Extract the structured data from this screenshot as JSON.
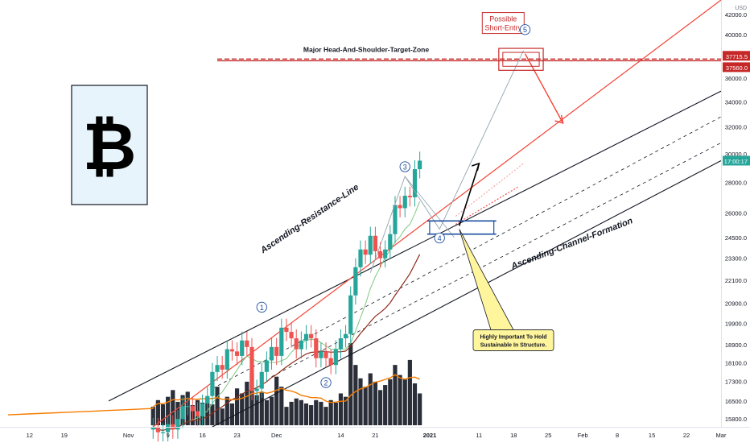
{
  "chart_data": {
    "type": "candlestick",
    "symbol": "BTCUSD",
    "title": "",
    "currency": "USD",
    "countdown": "17:00:17",
    "y_axis": {
      "scale": "log",
      "range": [
        15500,
        43500
      ],
      "ticks": [
        15800,
        16500,
        17300,
        18100,
        18900,
        19900,
        20900,
        22100,
        23300,
        24500,
        26000,
        28000,
        30000,
        32000,
        34000,
        36000,
        38000,
        40000,
        42000
      ]
    },
    "price_labels": {
      "upper": "37715.5",
      "lower": "37560.0"
    },
    "x_axis": {
      "range": [
        "2020-10-06",
        "2021-03-01"
      ],
      "ticks": [
        {
          "date": "2020-10-12",
          "label": "12"
        },
        {
          "date": "2020-10-19",
          "label": "19"
        },
        {
          "date": "2020-11-01",
          "label": "Nov"
        },
        {
          "date": "2020-11-09",
          "label": "9"
        },
        {
          "date": "2020-11-16",
          "label": "16"
        },
        {
          "date": "2020-11-23",
          "label": "23"
        },
        {
          "date": "2020-12-01",
          "label": "Dec"
        },
        {
          "date": "2020-12-14",
          "label": "14"
        },
        {
          "date": "2020-12-21",
          "label": "21"
        },
        {
          "date": "2021-01-01",
          "label": "2021"
        },
        {
          "date": "2021-01-11",
          "label": "11"
        },
        {
          "date": "2021-01-18",
          "label": "18"
        },
        {
          "date": "2021-01-25",
          "label": "25"
        },
        {
          "date": "2021-02-01",
          "label": "Feb"
        },
        {
          "date": "2021-02-08",
          "label": "8"
        },
        {
          "date": "2021-02-15",
          "label": "15"
        },
        {
          "date": "2021-02-22",
          "label": "22"
        },
        {
          "date": "2021-03-01",
          "label": "Mar"
        }
      ]
    },
    "candles": {
      "first_date": "2020-11-06",
      "close": [
        15500,
        15300,
        15300,
        15600,
        15400,
        15800,
        16300,
        16300,
        16100,
        15900,
        16400,
        16700,
        17700,
        18000,
        17800,
        18700,
        18600,
        18400,
        19100,
        18800,
        16900,
        17000,
        17700,
        18200,
        18800,
        18400,
        19700,
        19500,
        19200,
        18700,
        19100,
        19400,
        19200,
        18300,
        18600,
        18300,
        18000,
        18700,
        19200,
        19400,
        21300,
        22800,
        23800,
        23500,
        24600,
        23700,
        23300,
        23800,
        24700,
        26500,
        26300,
        27100,
        27000,
        28900,
        29500
      ]
    },
    "volume_bars_relative": [
      0.22,
      0.3,
      0.25,
      0.34,
      0.42,
      0.28,
      0.36,
      0.4,
      0.24,
      0.3,
      0.27,
      0.33,
      0.25,
      0.46,
      0.2,
      0.34,
      0.26,
      0.44,
      0.38,
      0.52,
      0.62,
      0.36,
      0.4,
      0.3,
      0.34,
      0.58,
      0.46,
      0.22,
      0.28,
      0.32,
      0.3,
      0.26,
      0.24,
      0.3,
      0.28,
      0.22,
      0.3,
      0.27,
      0.38,
      0.34,
      0.98,
      0.72,
      0.56,
      0.46,
      0.62,
      0.52,
      0.42,
      0.48,
      0.55,
      0.72,
      0.6,
      0.55,
      0.78,
      0.5,
      0.38
    ],
    "annotations": {
      "resistance_label": "Ascending-Resistance-Line",
      "channel_label": "Ascending-Channel-Formation",
      "hs_zone_label": "Major Head-And-Shoulder-Target-Zone",
      "short_entry_line1": "Possible",
      "short_entry_line2": "Short-Entry",
      "note_line1": "Highly Important To Hold",
      "note_line2": "Sustainable In Structure.",
      "waves": [
        "1",
        "2",
        "3",
        "4",
        "5"
      ]
    },
    "logo_symbol": "₿",
    "colors": {
      "up": "#26a69a",
      "down": "#ef5350",
      "volume": "#131722",
      "resistance": "#f44336",
      "channel": "#131722",
      "hs_zone": "#c62828",
      "countdown_bg": "#26a69a",
      "price_label_bg": "#c62828",
      "note_bg": "#fff59d",
      "ma_orange": "#f57c00",
      "ma_brown": "#8d2b1a",
      "ma_green": "#81c784",
      "logo_bg": "#e8f4fc"
    }
  }
}
